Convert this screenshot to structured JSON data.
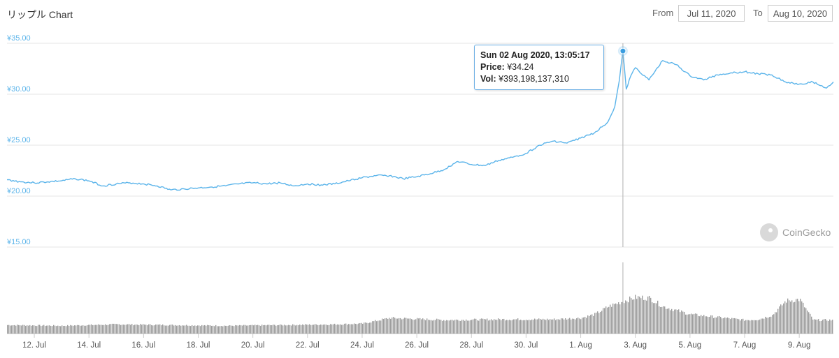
{
  "header": {
    "title": "リップル Chart",
    "from_label": "From",
    "from_value": "Jul 11, 2020",
    "to_label": "To",
    "to_value": "Aug 10, 2020"
  },
  "tooltip": {
    "date": "Sun 02 Aug 2020, 13:05:17",
    "price_label": "Price:",
    "price_value": "¥34.24",
    "vol_label": "Vol:",
    "vol_value": "¥393,198,137,310"
  },
  "watermark": {
    "text": "CoinGecko",
    "icon": "gecko-icon"
  },
  "chart_data": {
    "type": "line",
    "title": "リップル Chart",
    "x_range": [
      "2020-07-11",
      "2020-08-10"
    ],
    "y_ticks": [
      "¥35.00",
      "¥30.00",
      "¥25.00",
      "¥20.00",
      "¥15.00"
    ],
    "y_tick_values": [
      35,
      30,
      25,
      20,
      15
    ],
    "ylim": [
      15,
      35
    ],
    "x_ticks": [
      "12. Jul",
      "14. Jul",
      "16. Jul",
      "18. Jul",
      "20. Jul",
      "22. Jul",
      "24. Jul",
      "26. Jul",
      "28. Jul",
      "30. Jul",
      "1. Aug",
      "3. Aug",
      "5. Aug",
      "7. Aug",
      "9. Aug"
    ],
    "x_tick_dates": [
      "2020-07-12",
      "2020-07-14",
      "2020-07-16",
      "2020-07-18",
      "2020-07-20",
      "2020-07-22",
      "2020-07-24",
      "2020-07-26",
      "2020-07-28",
      "2020-07-30",
      "2020-08-01",
      "2020-08-03",
      "2020-08-05",
      "2020-08-07",
      "2020-08-09"
    ],
    "grid": true,
    "series": [
      {
        "color": "#5bb4ea",
        "x": [
          "2020-07-11 00:00",
          "2020-07-11 12:00",
          "2020-07-12 00:00",
          "2020-07-12 12:00",
          "2020-07-13 00:00",
          "2020-07-13 12:00",
          "2020-07-14 00:00",
          "2020-07-14 12:00",
          "2020-07-15 00:00",
          "2020-07-15 12:00",
          "2020-07-16 00:00",
          "2020-07-16 12:00",
          "2020-07-17 00:00",
          "2020-07-17 12:00",
          "2020-07-18 00:00",
          "2020-07-18 12:00",
          "2020-07-19 00:00",
          "2020-07-19 12:00",
          "2020-07-20 00:00",
          "2020-07-20 12:00",
          "2020-07-21 00:00",
          "2020-07-21 12:00",
          "2020-07-22 00:00",
          "2020-07-22 12:00",
          "2020-07-23 00:00",
          "2020-07-23 12:00",
          "2020-07-24 00:00",
          "2020-07-24 12:00",
          "2020-07-25 00:00",
          "2020-07-25 12:00",
          "2020-07-26 00:00",
          "2020-07-26 12:00",
          "2020-07-27 00:00",
          "2020-07-27 12:00",
          "2020-07-28 00:00",
          "2020-07-28 12:00",
          "2020-07-29 00:00",
          "2020-07-29 12:00",
          "2020-07-30 00:00",
          "2020-07-30 12:00",
          "2020-07-31 00:00",
          "2020-07-31 12:00",
          "2020-08-01 00:00",
          "2020-08-01 12:00",
          "2020-08-02 00:00",
          "2020-08-02 06:00",
          "2020-08-02 10:00",
          "2020-08-02 13:05",
          "2020-08-02 16:00",
          "2020-08-02 20:00",
          "2020-08-03 00:00",
          "2020-08-03 12:00",
          "2020-08-04 00:00",
          "2020-08-04 12:00",
          "2020-08-05 00:00",
          "2020-08-05 12:00",
          "2020-08-06 00:00",
          "2020-08-06 12:00",
          "2020-08-07 00:00",
          "2020-08-07 12:00",
          "2020-08-08 00:00",
          "2020-08-08 12:00",
          "2020-08-09 00:00",
          "2020-08-09 12:00",
          "2020-08-10 00:00",
          "2020-08-10 06:00"
        ],
        "values": [
          21.6,
          21.4,
          21.3,
          21.4,
          21.5,
          21.7,
          21.5,
          21.0,
          21.2,
          21.3,
          21.2,
          21.0,
          20.6,
          20.7,
          20.8,
          20.9,
          21.0,
          21.2,
          21.3,
          21.2,
          21.3,
          21.0,
          21.2,
          21.1,
          21.2,
          21.5,
          21.8,
          22.0,
          22.0,
          21.7,
          21.9,
          22.2,
          22.6,
          23.4,
          23.1,
          23.0,
          23.5,
          23.8,
          24.2,
          25.0,
          25.4,
          25.2,
          25.7,
          26.2,
          27.3,
          28.8,
          31.4,
          34.24,
          30.5,
          31.8,
          32.6,
          31.4,
          33.3,
          32.9,
          31.8,
          31.4,
          31.9,
          32.1,
          32.2,
          32.0,
          31.9,
          31.2,
          31.0,
          31.2,
          30.6,
          31.2
        ]
      }
    ],
    "volume": {
      "color": "#8c8c8c",
      "note": "relative volume level (0-1) per time sample",
      "x": [
        "2020-07-11 00:00",
        "2020-07-13 00:00",
        "2020-07-15 00:00",
        "2020-07-17 00:00",
        "2020-07-19 00:00",
        "2020-07-21 00:00",
        "2020-07-23 00:00",
        "2020-07-24 00:00",
        "2020-07-25 00:00",
        "2020-07-27 00:00",
        "2020-07-29 00:00",
        "2020-07-31 00:00",
        "2020-08-01 00:00",
        "2020-08-01 12:00",
        "2020-08-02 00:00",
        "2020-08-02 12:00",
        "2020-08-03 00:00",
        "2020-08-03 12:00",
        "2020-08-04 00:00",
        "2020-08-05 00:00",
        "2020-08-06 00:00",
        "2020-08-07 00:00",
        "2020-08-07 12:00",
        "2020-08-08 00:00",
        "2020-08-08 12:00",
        "2020-08-09 00:00",
        "2020-08-09 12:00",
        "2020-08-10 06:00"
      ],
      "values": [
        0.12,
        0.11,
        0.13,
        0.12,
        0.11,
        0.12,
        0.13,
        0.14,
        0.22,
        0.19,
        0.2,
        0.2,
        0.22,
        0.27,
        0.38,
        0.45,
        0.51,
        0.5,
        0.38,
        0.27,
        0.23,
        0.19,
        0.2,
        0.26,
        0.46,
        0.48,
        0.19,
        0.19
      ]
    },
    "tooltip_point": {
      "x": "2020-08-02 13:05",
      "y": 34.24
    }
  }
}
